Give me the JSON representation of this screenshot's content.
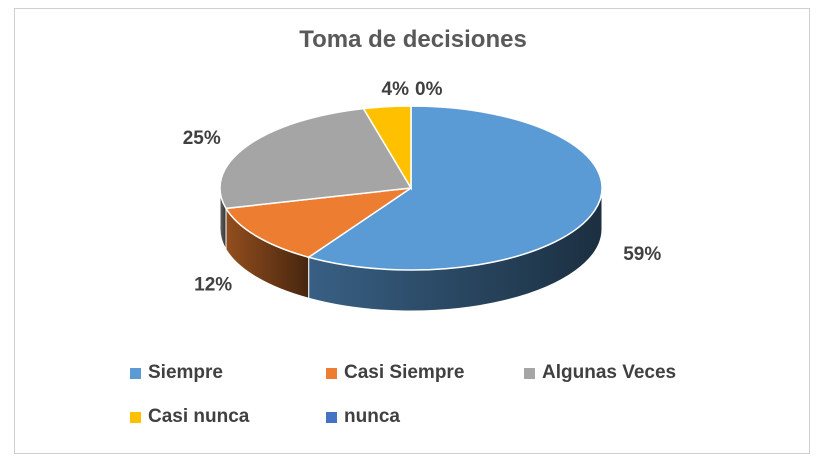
{
  "chart_data": {
    "type": "pie",
    "title": "Toma de decisiones",
    "categories": [
      "Siempre",
      "Casi Siempre",
      "Algunas Veces",
      "Casi nunca",
      "nunca"
    ],
    "values": [
      59,
      12,
      25,
      4,
      0
    ],
    "labels": [
      "59%",
      "12%",
      "25%",
      "4%",
      "0%"
    ],
    "colors": [
      "#5b9bd5",
      "#ed7d31",
      "#a5a5a5",
      "#ffc000",
      "#4472c4"
    ],
    "three_d": true,
    "legend_position": "bottom"
  }
}
